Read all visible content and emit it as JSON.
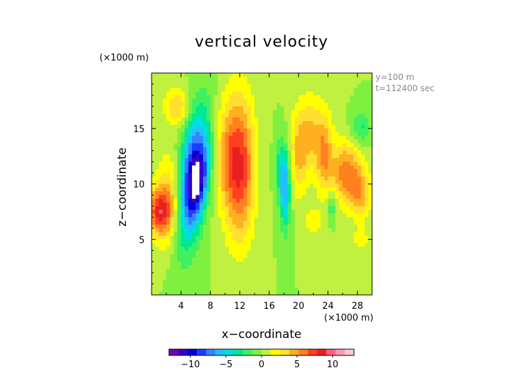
{
  "chart_data": {
    "type": "heatmap",
    "title": "vertical velocity",
    "xlabel": "x−coordinate",
    "ylabel": "z−coordinate",
    "x_unit_label": "(×1000 m)",
    "z_unit_label": "(×1000 m)",
    "annotations": [
      "y=100 m",
      "t=112400 sec"
    ],
    "xlim": [
      0,
      30
    ],
    "ylim": [
      0,
      20
    ],
    "x_ticks": [
      4,
      8,
      12,
      16,
      20,
      24,
      28
    ],
    "x_tick_labels": [
      "4",
      "8",
      "12",
      "16",
      "20",
      "24",
      "28"
    ],
    "y_ticks": [
      5,
      10,
      15
    ],
    "y_tick_labels": [
      "5",
      "10",
      "15"
    ],
    "colorbar": {
      "range": [
        -13,
        13
      ],
      "ticks": [
        -10,
        -5,
        0,
        5,
        10
      ],
      "tick_labels": [
        "−10",
        "−5",
        "0",
        "5",
        "10"
      ],
      "colors": [
        "#7a00b0",
        "#3a00c8",
        "#0000d8",
        "#1a40ff",
        "#3a80ff",
        "#20c0ff",
        "#00e0e0",
        "#00e890",
        "#40f060",
        "#80f040",
        "#c0f040",
        "#ffff00",
        "#ffe030",
        "#ffb020",
        "#ff8020",
        "#ff4020",
        "#e82020",
        "#ff6080",
        "#ff9ab0",
        "#ffc8d0"
      ]
    },
    "background_value": 0,
    "features": [
      {
        "x": 5.5,
        "z": 10.5,
        "sx": 1.3,
        "sz": 4.2,
        "value": -10,
        "tilt": 10
      },
      {
        "x": 6.5,
        "z": 10.2,
        "sx": 0.8,
        "sz": 2.2,
        "value": -5,
        "tilt": 12
      },
      {
        "x": 12.0,
        "z": 11.5,
        "sx": 1.4,
        "sz": 4.5,
        "value": 8
      },
      {
        "x": 10.0,
        "z": 12.5,
        "sx": 1.0,
        "sz": 3.5,
        "value": 3
      },
      {
        "x": 3.5,
        "z": 17.0,
        "sx": 1.2,
        "sz": 1.2,
        "value": 4
      },
      {
        "x": 1.0,
        "z": 7.5,
        "sx": 1.2,
        "sz": 1.5,
        "value": 7
      },
      {
        "x": 2.5,
        "z": 8.5,
        "sx": 1.3,
        "sz": 3.0,
        "value": 4
      },
      {
        "x": 18.2,
        "z": 9.5,
        "sx": 0.5,
        "sz": 2.5,
        "value": -6
      },
      {
        "x": 17.5,
        "z": 11.5,
        "sx": 0.5,
        "sz": 2.0,
        "value": -3
      },
      {
        "x": 21.5,
        "z": 14.5,
        "sx": 1.5,
        "sz": 2.5,
        "value": 4
      },
      {
        "x": 20.0,
        "z": 12.0,
        "sx": 0.8,
        "sz": 2.5,
        "value": 3
      },
      {
        "x": 23.5,
        "z": 12.5,
        "sx": 0.8,
        "sz": 2.5,
        "value": 4
      },
      {
        "x": 26.5,
        "z": 11.0,
        "sx": 1.5,
        "sz": 2.0,
        "value": 6
      },
      {
        "x": 28.5,
        "z": 9.0,
        "sx": 1.0,
        "sz": 1.5,
        "value": 4
      },
      {
        "x": 24.5,
        "z": 8.0,
        "sx": 0.5,
        "sz": 1.0,
        "value": -3
      },
      {
        "x": 28.5,
        "z": 15.0,
        "sx": 1.0,
        "sz": 1.0,
        "value": -3
      },
      {
        "x": 22.0,
        "z": 6.5,
        "sx": 1.0,
        "sz": 1.0,
        "value": 2
      },
      {
        "x": 28.5,
        "z": 5.0,
        "sx": 0.8,
        "sz": 0.8,
        "value": 2
      }
    ]
  }
}
